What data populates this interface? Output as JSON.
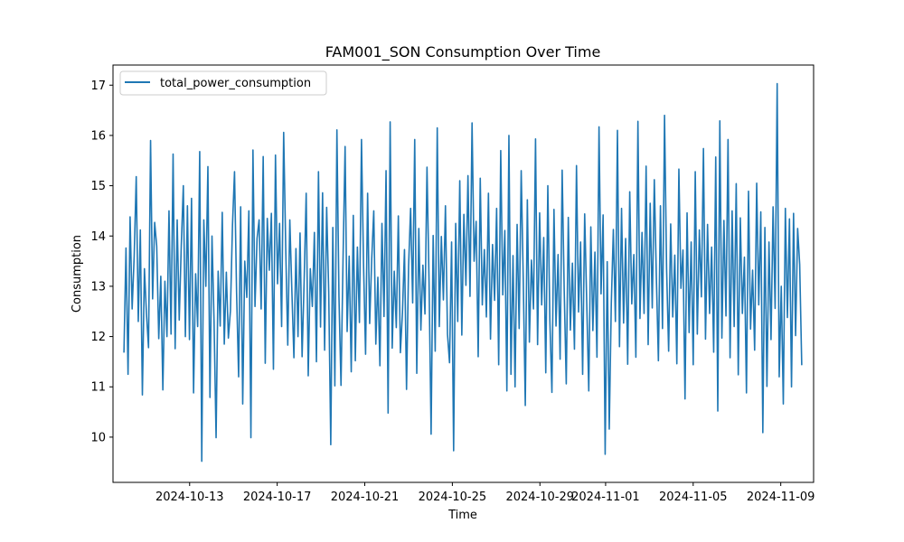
{
  "chart_data": {
    "type": "line",
    "title": "FAM001_SON Consumption Over Time",
    "xlabel": "Time",
    "ylabel": "Consumption",
    "x_start": "2024-10-10",
    "x_end": "2024-11-09 23:00",
    "xlim": [
      "2024-10-09 12:00",
      "2024-11-10 12:00"
    ],
    "ylim": [
      9.1,
      17.4
    ],
    "x_ticks": [
      "2024-10-13",
      "2024-10-17",
      "2024-10-21",
      "2024-10-25",
      "2024-10-29",
      "2024-11-01",
      "2024-11-05",
      "2024-11-09"
    ],
    "y_ticks": [
      10,
      11,
      12,
      13,
      14,
      15,
      16,
      17
    ],
    "grid": false,
    "legend_position": "top-left",
    "series": [
      {
        "name": "total_power_consumption",
        "color": "#1f77b4",
        "values": [
          11.68,
          13.76,
          11.25,
          14.38,
          12.55,
          13.6,
          15.18,
          12.3,
          14.12,
          10.84,
          13.35,
          12.45,
          11.78,
          15.9,
          12.75,
          14.27,
          13.8,
          11.96,
          13.2,
          10.94,
          13.1,
          12.0,
          14.5,
          12.05,
          15.63,
          11.76,
          14.32,
          12.33,
          13.81,
          15.0,
          12.0,
          14.6,
          11.94,
          14.75,
          10.88,
          13.25,
          12.2,
          15.68,
          9.52,
          14.32,
          13.0,
          15.38,
          10.79,
          14.0,
          12.31,
          9.99,
          13.3,
          12.21,
          14.47,
          11.85,
          13.28,
          11.97,
          12.51,
          14.21,
          15.28,
          12.89,
          11.2,
          14.58,
          10.66,
          13.5,
          12.78,
          14.5,
          9.99,
          15.71,
          12.6,
          13.95,
          14.32,
          12.55,
          15.58,
          11.47,
          14.35,
          13.32,
          14.45,
          11.35,
          15.61,
          13.05,
          14.25,
          12.2,
          16.06,
          13.77,
          11.83,
          14.32,
          12.92,
          11.58,
          13.75,
          12.0,
          14.06,
          11.6,
          13.1,
          14.85,
          11.22,
          13.35,
          12.6,
          14.07,
          11.5,
          15.28,
          12.19,
          14.86,
          11.73,
          14.57,
          12.88,
          9.85,
          14.17,
          11.02,
          16.11,
          12.8,
          11.03,
          13.55,
          15.78,
          12.1,
          13.6,
          11.3,
          14.41,
          11.52,
          13.78,
          12.28,
          15.92,
          13.45,
          11.65,
          14.85,
          12.26,
          13.55,
          14.5,
          11.85,
          13.18,
          11.42,
          14.25,
          12.4,
          15.3,
          10.48,
          16.27,
          11.77,
          13.3,
          12.18,
          14.4,
          11.68,
          12.47,
          13.73,
          10.95,
          13.4,
          14.55,
          12.67,
          15.92,
          11.27,
          14.15,
          12.13,
          13.42,
          12.45,
          15.37,
          13.08,
          10.06,
          14.01,
          11.71,
          16.15,
          12.2,
          13.99,
          12.73,
          14.6,
          12.05,
          11.48,
          13.88,
          9.73,
          14.25,
          12.3,
          15.1,
          12.03,
          14.43,
          13.02,
          15.2,
          12.8,
          16.25,
          13.5,
          14.29,
          11.6,
          15.15,
          12.63,
          13.73,
          12.39,
          14.85,
          11.95,
          13.83,
          12.72,
          14.55,
          11.44,
          15.7,
          12.83,
          14.11,
          10.92,
          16.0,
          11.25,
          13.61,
          11.0,
          14.23,
          12.16,
          15.3,
          13.14,
          10.63,
          14.72,
          11.89,
          13.52,
          12.55,
          15.93,
          11.84,
          14.46,
          12.63,
          13.97,
          11.28,
          15.0,
          12.31,
          10.89,
          14.53,
          12.21,
          13.63,
          11.55,
          15.31,
          12.92,
          11.06,
          14.37,
          12.13,
          13.46,
          11.75,
          15.4,
          12.49,
          13.88,
          11.25,
          14.44,
          12.67,
          10.92,
          14.18,
          12.12,
          13.68,
          11.59,
          16.17,
          12.85,
          14.42,
          9.66,
          13.49,
          10.16,
          12.66,
          14.13,
          12.3,
          16.1,
          11.8,
          14.55,
          12.27,
          13.95,
          11.45,
          14.88,
          12.65,
          13.63,
          11.59,
          16.28,
          12.36,
          14.07,
          12.46,
          15.39,
          11.84,
          14.65,
          12.57,
          15.12,
          13.19,
          11.52,
          14.6,
          12.16,
          16.4,
          13.35,
          11.71,
          14.24,
          12.39,
          13.62,
          11.46,
          15.33,
          12.96,
          13.72,
          10.76,
          14.46,
          12.08,
          13.88,
          11.44,
          15.28,
          12.05,
          14.12,
          12.79,
          15.74,
          11.95,
          14.23,
          12.46,
          13.78,
          11.69,
          15.57,
          10.52,
          16.29,
          11.97,
          14.31,
          12.41,
          15.92,
          11.58,
          14.5,
          12.2,
          15.04,
          11.24,
          14.36,
          12.46,
          13.58,
          10.88,
          14.89,
          12.15,
          13.32,
          11.73,
          15.05,
          12.63,
          14.48,
          10.09,
          14.17,
          11.01,
          13.88,
          11.94,
          14.58,
          12.56,
          17.03,
          11.2,
          13.0,
          10.66,
          14.55,
          12.38,
          14.34,
          11.0,
          14.45,
          12.02,
          14.15,
          13.43,
          11.43
        ]
      }
    ]
  }
}
